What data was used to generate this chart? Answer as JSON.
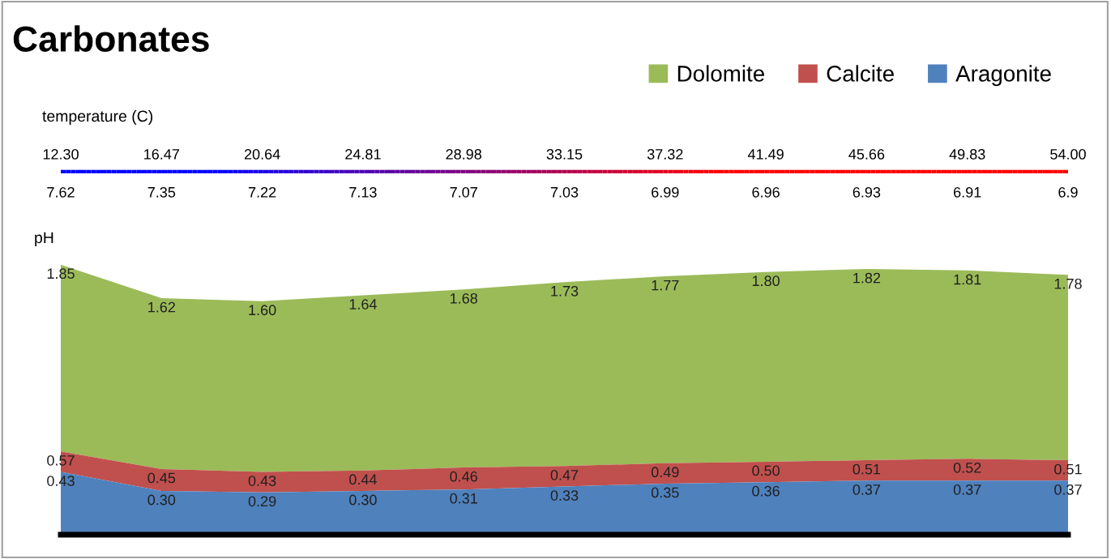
{
  "chart_data": {
    "type": "area",
    "title": "Carbonates",
    "legend": "top right",
    "tick_labels": "x",
    "categories": [
      "12.30\n7.62",
      "16.47\n7.35",
      "20.64\n7.22",
      "24.81\n7.13",
      "28.98\n7.07",
      "33.15\n7.03",
      "37.32\n6.99",
      "41.49\n6.96",
      "45.66\n6.93",
      "49.83\n6.91",
      "54.00\n6.9"
    ],
    "annotations": [
      "temperature (C)",
      "pH"
    ],
    "series": [
      {
        "name": "Dolomite",
        "color": "#9bbb59",
        "values": [
          1.85,
          1.62,
          1.6,
          1.64,
          1.68,
          1.73,
          1.77,
          1.8,
          1.82,
          1.81,
          1.78
        ],
        "value_labels": [
          "1.85",
          "1.62",
          "1.60",
          "1.64",
          "1.68",
          "1.73",
          "1.77",
          "1.80",
          "1.82",
          "1.81",
          "1.78"
        ]
      },
      {
        "name": "Calcite",
        "color": "#c0504d",
        "values": [
          0.57,
          0.45,
          0.43,
          0.44,
          0.46,
          0.47,
          0.49,
          0.5,
          0.51,
          0.52,
          0.51
        ],
        "value_labels": [
          "0.57",
          "0.45",
          "0.43",
          "0.44",
          "0.46",
          "0.47",
          "0.49",
          "0.50",
          "0.51",
          "0.52",
          "0.51"
        ]
      },
      {
        "name": "Aragonite",
        "color": "#4f81bd",
        "values": [
          0.43,
          0.3,
          0.29,
          0.3,
          0.31,
          0.33,
          0.35,
          0.36,
          0.37,
          0.37,
          0.37
        ],
        "value_labels": [
          "0.43",
          "0.30",
          "0.29",
          "0.30",
          "0.31",
          "0.33",
          "0.35",
          "0.36",
          "0.37",
          "0.37",
          "0.37"
        ]
      }
    ]
  }
}
